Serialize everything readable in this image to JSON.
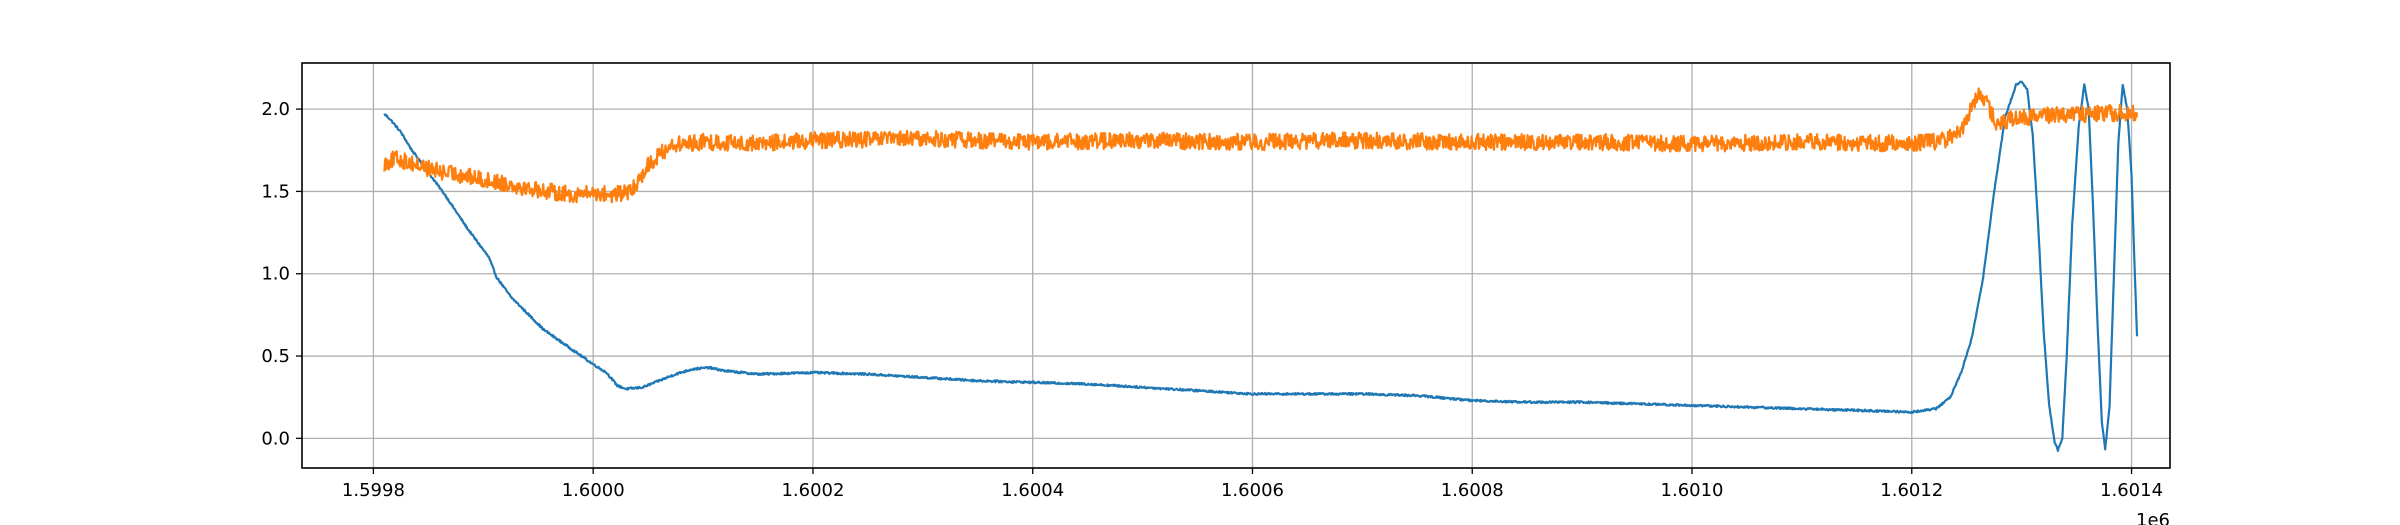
{
  "chart_data": {
    "type": "line",
    "title": "",
    "xlabel": "",
    "ylabel": "",
    "x_offset_label": "1e6",
    "xlim": [
      1599735,
      1601435
    ],
    "ylim": [
      -0.18,
      2.28
    ],
    "grid": true,
    "x_ticks": [
      {
        "value": 1599800,
        "label": "1.5998"
      },
      {
        "value": 1600000,
        "label": "1.6000"
      },
      {
        "value": 1600200,
        "label": "1.6002"
      },
      {
        "value": 1600400,
        "label": "1.6004"
      },
      {
        "value": 1600600,
        "label": "1.6006"
      },
      {
        "value": 1600800,
        "label": "1.6008"
      },
      {
        "value": 1601000,
        "label": "1.6010"
      },
      {
        "value": 1601200,
        "label": "1.6012"
      },
      {
        "value": 1601400,
        "label": "1.6014"
      }
    ],
    "y_ticks": [
      {
        "value": 0.0,
        "label": "0.0"
      },
      {
        "value": 0.5,
        "label": "0.5"
      },
      {
        "value": 1.0,
        "label": "1.0"
      },
      {
        "value": 1.5,
        "label": "1.5"
      },
      {
        "value": 2.0,
        "label": "2.0"
      }
    ],
    "series": [
      {
        "color": "#1f77b4",
        "noise": 0.006,
        "points": [
          [
            1599810,
            1.97
          ],
          [
            1599815,
            1.94
          ],
          [
            1599825,
            1.86
          ],
          [
            1599835,
            1.75
          ],
          [
            1599845,
            1.66
          ],
          [
            1599855,
            1.57
          ],
          [
            1599865,
            1.48
          ],
          [
            1599875,
            1.38
          ],
          [
            1599885,
            1.28
          ],
          [
            1599895,
            1.19
          ],
          [
            1599905,
            1.1
          ],
          [
            1599912,
            0.98
          ],
          [
            1599925,
            0.86
          ],
          [
            1599940,
            0.76
          ],
          [
            1599955,
            0.66
          ],
          [
            1599970,
            0.59
          ],
          [
            1599985,
            0.52
          ],
          [
            1600000,
            0.45
          ],
          [
            1600012,
            0.4
          ],
          [
            1600022,
            0.32
          ],
          [
            1600030,
            0.3
          ],
          [
            1600045,
            0.31
          ],
          [
            1600060,
            0.35
          ],
          [
            1600075,
            0.39
          ],
          [
            1600090,
            0.42
          ],
          [
            1600105,
            0.43
          ],
          [
            1600120,
            0.41
          ],
          [
            1600150,
            0.39
          ],
          [
            1600200,
            0.4
          ],
          [
            1600250,
            0.39
          ],
          [
            1600300,
            0.37
          ],
          [
            1600350,
            0.35
          ],
          [
            1600400,
            0.34
          ],
          [
            1600450,
            0.33
          ],
          [
            1600500,
            0.31
          ],
          [
            1600550,
            0.29
          ],
          [
            1600600,
            0.27
          ],
          [
            1600650,
            0.27
          ],
          [
            1600700,
            0.27
          ],
          [
            1600750,
            0.26
          ],
          [
            1600800,
            0.23
          ],
          [
            1600850,
            0.22
          ],
          [
            1600900,
            0.22
          ],
          [
            1600950,
            0.21
          ],
          [
            1601000,
            0.2
          ],
          [
            1601050,
            0.19
          ],
          [
            1601100,
            0.18
          ],
          [
            1601150,
            0.17
          ],
          [
            1601200,
            0.16
          ],
          [
            1601222,
            0.18
          ],
          [
            1601235,
            0.25
          ],
          [
            1601245,
            0.4
          ],
          [
            1601255,
            0.62
          ],
          [
            1601265,
            0.98
          ],
          [
            1601275,
            1.5
          ],
          [
            1601285,
            1.95
          ],
          [
            1601295,
            2.15
          ],
          [
            1601300,
            2.17
          ],
          [
            1601305,
            2.12
          ],
          [
            1601310,
            1.85
          ],
          [
            1601315,
            1.3
          ],
          [
            1601320,
            0.65
          ],
          [
            1601325,
            0.2
          ],
          [
            1601330,
            -0.02
          ],
          [
            1601333,
            -0.07
          ],
          [
            1601337,
            0.0
          ],
          [
            1601341,
            0.5
          ],
          [
            1601346,
            1.3
          ],
          [
            1601352,
            1.9
          ],
          [
            1601357,
            2.15
          ],
          [
            1601361,
            2.0
          ],
          [
            1601365,
            1.4
          ],
          [
            1601369,
            0.7
          ],
          [
            1601373,
            0.1
          ],
          [
            1601376,
            -0.07
          ],
          [
            1601380,
            0.2
          ],
          [
            1601384,
            1.0
          ],
          [
            1601388,
            1.8
          ],
          [
            1601392,
            2.15
          ],
          [
            1601396,
            2.0
          ],
          [
            1601400,
            1.6
          ],
          [
            1601403,
            1.0
          ],
          [
            1601405,
            0.62
          ]
        ]
      },
      {
        "color": "#ff7f0e",
        "noise": 0.05,
        "points": [
          [
            1599810,
            1.67
          ],
          [
            1599820,
            1.7
          ],
          [
            1599840,
            1.66
          ],
          [
            1599860,
            1.62
          ],
          [
            1599880,
            1.6
          ],
          [
            1599900,
            1.57
          ],
          [
            1599920,
            1.55
          ],
          [
            1599940,
            1.52
          ],
          [
            1599960,
            1.5
          ],
          [
            1599980,
            1.48
          ],
          [
            1600000,
            1.49
          ],
          [
            1600020,
            1.48
          ],
          [
            1600035,
            1.5
          ],
          [
            1600050,
            1.66
          ],
          [
            1600070,
            1.78
          ],
          [
            1600100,
            1.8
          ],
          [
            1600150,
            1.79
          ],
          [
            1600200,
            1.81
          ],
          [
            1600300,
            1.82
          ],
          [
            1600400,
            1.8
          ],
          [
            1600500,
            1.81
          ],
          [
            1600600,
            1.8
          ],
          [
            1600700,
            1.81
          ],
          [
            1600800,
            1.8
          ],
          [
            1600900,
            1.8
          ],
          [
            1601000,
            1.79
          ],
          [
            1601100,
            1.8
          ],
          [
            1601200,
            1.79
          ],
          [
            1601230,
            1.81
          ],
          [
            1601245,
            1.86
          ],
          [
            1601255,
            2.02
          ],
          [
            1601262,
            2.1
          ],
          [
            1601270,
            2.01
          ],
          [
            1601278,
            1.9
          ],
          [
            1601290,
            1.94
          ],
          [
            1601320,
            1.96
          ],
          [
            1601360,
            1.97
          ],
          [
            1601405,
            1.98
          ]
        ]
      }
    ]
  }
}
